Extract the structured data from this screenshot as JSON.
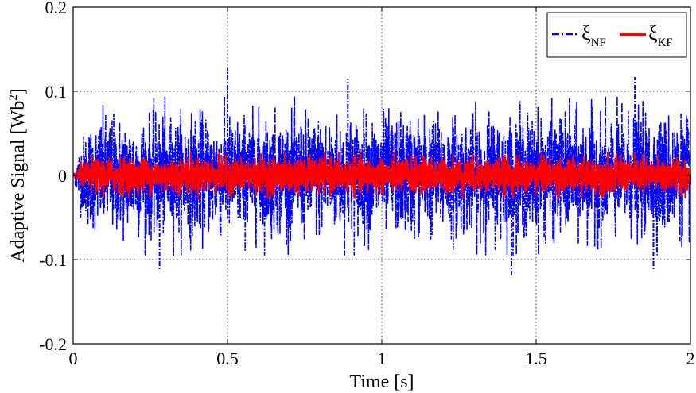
{
  "chart_data": {
    "type": "line",
    "xlabel": "Time [s]",
    "ylabel_main": "Adaptive Signal [Wb",
    "ylabel_sup": "2",
    "ylabel_close": "]",
    "xlim": [
      0,
      2
    ],
    "ylim": [
      -0.2,
      0.2
    ],
    "x_ticks": [
      0,
      0.5,
      1,
      1.5,
      2
    ],
    "x_tick_labels": [
      "0",
      "0.5",
      "1",
      "1.5",
      "2"
    ],
    "y_ticks": [
      -0.2,
      -0.1,
      0,
      0.1,
      0.2
    ],
    "y_tick_labels": [
      "-0.2",
      "-0.1",
      "0",
      "0.1",
      "0.2"
    ],
    "grid": true,
    "legend_position": "top-right",
    "series": [
      {
        "name": "ξ",
        "name_sub": "NF",
        "color": "#0000ff",
        "line_style": "dash-dot",
        "envelope": {
          "t": [
            0,
            0.02,
            0.05,
            0.1,
            0.25,
            0.5,
            0.75,
            1.0,
            1.25,
            1.5,
            1.75,
            2.0
          ],
          "upper": [
            0.0,
            0.04,
            0.07,
            0.08,
            0.08,
            0.08,
            0.08,
            0.08,
            0.08,
            0.08,
            0.08,
            0.08
          ],
          "lower": [
            0.0,
            -0.04,
            -0.07,
            -0.08,
            -0.08,
            -0.08,
            -0.08,
            -0.08,
            -0.08,
            -0.08,
            -0.08,
            -0.08
          ]
        },
        "peak_spikes": [
          {
            "t": 0.28,
            "y": -0.113
          },
          {
            "t": 0.5,
            "y": 0.128
          },
          {
            "t": 0.89,
            "y": 0.114
          },
          {
            "t": 1.42,
            "y": -0.12
          },
          {
            "t": 1.82,
            "y": 0.117
          },
          {
            "t": 1.88,
            "y": -0.112
          }
        ]
      },
      {
        "name": "ξ",
        "name_sub": "KF",
        "color": "#ff0000",
        "line_style": "solid",
        "envelope": {
          "t": [
            0,
            0.02,
            0.05,
            0.1,
            0.5,
            1.0,
            1.5,
            2.0
          ],
          "upper": [
            0.0,
            0.012,
            0.02,
            0.023,
            0.023,
            0.023,
            0.023,
            0.023
          ],
          "lower": [
            0.0,
            -0.012,
            -0.02,
            -0.023,
            -0.023,
            -0.023,
            -0.023,
            -0.023
          ]
        }
      }
    ]
  }
}
